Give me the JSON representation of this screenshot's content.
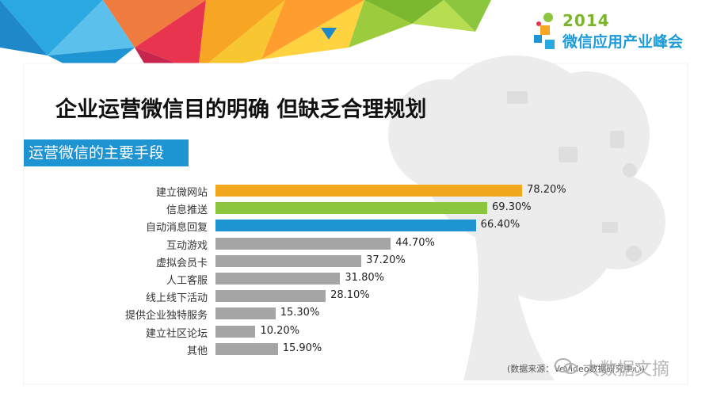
{
  "brand": {
    "year": "2014",
    "name": "微信应用产业峰会"
  },
  "title": "企业运营微信目的明确 但缺乏合理规划",
  "section_label": "运营微信的主要手段",
  "source_note": "(数据来源：VeVideo数据研究中心)",
  "watermark_text": "大数据文摘",
  "colors": {
    "orange": "#f2a81d",
    "green": "#8cc63e",
    "blue": "#1f94d2",
    "gray": "#a5a5a5",
    "section_bg": "#1f94d2"
  },
  "chart_data": {
    "type": "bar",
    "orientation": "horizontal",
    "title": "运营微信的主要手段",
    "categories": [
      "建立微网站",
      "信息推送",
      "自动消息回复",
      "互动游戏",
      "虚拟会员卡",
      "人工客服",
      "线上线下活动",
      "提供企业独特服务",
      "建立社区论坛",
      "其他"
    ],
    "values": [
      78.2,
      69.3,
      66.4,
      44.7,
      37.2,
      31.8,
      28.1,
      15.3,
      10.2,
      15.9
    ],
    "value_labels": [
      "78.20%",
      "69.30%",
      "66.40%",
      "44.70%",
      "37.20%",
      "31.80%",
      "28.10%",
      "15.30%",
      "10.20%",
      "15.90%"
    ],
    "bar_colors": [
      "#f2a81d",
      "#8cc63e",
      "#1f94d2",
      "#a5a5a5",
      "#a5a5a5",
      "#a5a5a5",
      "#a5a5a5",
      "#a5a5a5",
      "#a5a5a5",
      "#a5a5a5"
    ],
    "unit": "%",
    "xlim": [
      0,
      100
    ],
    "grid": false,
    "legend": "none"
  }
}
